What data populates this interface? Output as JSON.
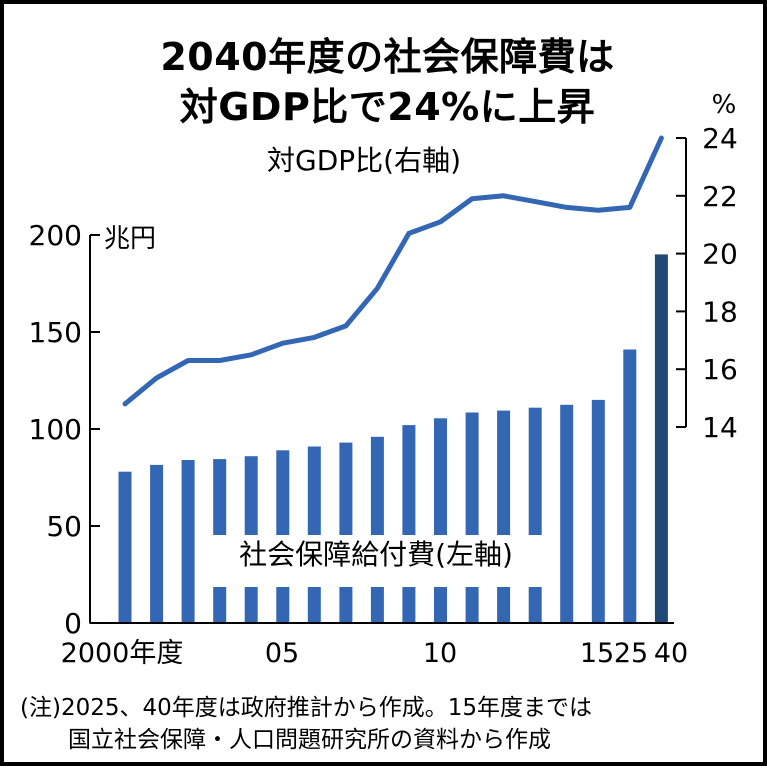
{
  "title": {
    "line1": "2040年度の社会保障費は",
    "line2": "対GDP比で24%に上昇"
  },
  "note": {
    "line1": "(注)2025、40年度は政府推計から作成。15年度までは",
    "line2": "国立社会保障・人口問題研究所の資料から作成"
  },
  "chart_data": {
    "type": "bar",
    "categories": [
      "2000",
      "2001",
      "2002",
      "2003",
      "2004",
      "2005",
      "2006",
      "2007",
      "2008",
      "2009",
      "2010",
      "2011",
      "2012",
      "2013",
      "2014",
      "2015",
      "2025",
      "2040"
    ],
    "x_tick_labels": [
      {
        "category": "2000",
        "label": "2000年度"
      },
      {
        "category": "2005",
        "label": "05"
      },
      {
        "category": "2010",
        "label": "10"
      },
      {
        "category": "2015",
        "label": "15"
      },
      {
        "category": "2025",
        "label": "25"
      },
      {
        "category": "2040",
        "label": "40"
      }
    ],
    "series": [
      {
        "name": "社会保障給付費(左軸)",
        "type": "bar",
        "axis": "left",
        "values": [
          78,
          81.5,
          84,
          84.5,
          86,
          89,
          91,
          93,
          96,
          102,
          105.5,
          108.5,
          109.5,
          111,
          112.5,
          115,
          141,
          190
        ],
        "color": "#3366b3",
        "highlight": {
          "category": "2040",
          "color": "#1f4a78"
        }
      },
      {
        "name": "対GDP比(右軸)",
        "type": "line",
        "axis": "right",
        "values": [
          14.8,
          15.7,
          16.3,
          16.3,
          16.5,
          16.9,
          17.1,
          17.5,
          18.8,
          20.7,
          21.1,
          21.9,
          22.0,
          21.8,
          21.6,
          21.5,
          21.6,
          24.0
        ],
        "color": "#3366b3"
      }
    ],
    "y_left": {
      "unit": "兆円",
      "ticks": [
        0,
        50,
        100,
        150,
        200
      ],
      "range": [
        0,
        200
      ]
    },
    "y_right": {
      "unit": "%",
      "ticks": [
        14,
        16,
        18,
        20,
        22,
        24
      ],
      "range": [
        14,
        24
      ]
    },
    "grid": false
  }
}
